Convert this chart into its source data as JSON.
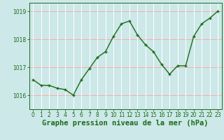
{
  "x": [
    0,
    1,
    2,
    3,
    4,
    5,
    6,
    7,
    8,
    9,
    10,
    11,
    12,
    13,
    14,
    15,
    16,
    17,
    18,
    19,
    20,
    21,
    22,
    23
  ],
  "y": [
    1016.55,
    1016.35,
    1016.35,
    1016.25,
    1016.2,
    1016.0,
    1016.55,
    1016.95,
    1017.35,
    1017.55,
    1018.1,
    1018.55,
    1018.65,
    1018.15,
    1017.8,
    1017.55,
    1017.1,
    1016.75,
    1017.05,
    1017.05,
    1018.1,
    1018.55,
    1018.75,
    1019.0
  ],
  "line_color": "#1a6b1a",
  "marker_color": "#1a6b1a",
  "bg_color": "#cce8e8",
  "grid_color_h": "#ffaaaa",
  "grid_color_v": "#ffffff",
  "xlabel": "Graphe pression niveau de la mer (hPa)",
  "xlabel_color": "#1a6b1a",
  "ylim_min": 1015.5,
  "ylim_max": 1019.3,
  "yticks": [
    1016,
    1017,
    1018,
    1019
  ],
  "xticks": [
    0,
    1,
    2,
    3,
    4,
    5,
    6,
    7,
    8,
    9,
    10,
    11,
    12,
    13,
    14,
    15,
    16,
    17,
    18,
    19,
    20,
    21,
    22,
    23
  ],
  "tick_label_size": 5.5,
  "xlabel_size": 7.5,
  "line_width": 1.0,
  "marker_size": 2.5,
  "marker_ew": 1.0
}
